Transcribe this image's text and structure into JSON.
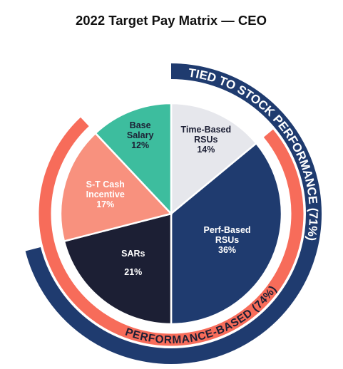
{
  "chart_data": {
    "type": "pie",
    "title": "2022 Target Pay Matrix — CEO",
    "categories": [
      "Time-Based RSUs",
      "Perf-Based RSUs",
      "SARs",
      "S-T Cash Incentive",
      "Base Salary"
    ],
    "values": [
      14,
      36,
      21,
      17,
      12
    ],
    "value_labels": [
      "14%",
      "36%",
      "21%",
      "17%",
      "12%"
    ],
    "colors": [
      "#e6e7ec",
      "#1f3b6f",
      "#1c1f34",
      "#f8917e",
      "#3dbd9e"
    ],
    "annotations": [
      {
        "text": "TIED TO STOCK PERFORMANCE (71%)",
        "color": "#1f3b6f"
      },
      {
        "text": "PERFORMANCE-BASED (74%)",
        "color": "#f76c5a"
      }
    ]
  }
}
